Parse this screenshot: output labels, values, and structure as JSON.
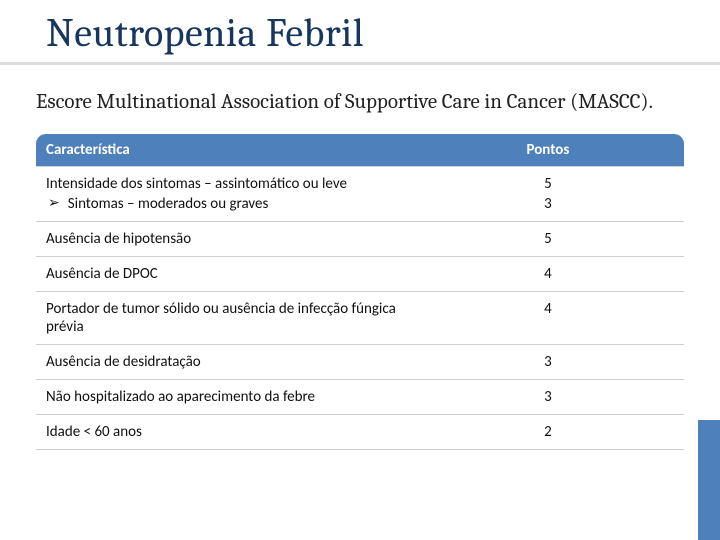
{
  "colors": {
    "accent": "#4e80bb",
    "title_text": "#17365d",
    "underline": "#dddddd",
    "row_border": "#cfcfcf",
    "text": "#111111",
    "header_text": "#ffffff"
  },
  "typography": {
    "title_fontsize_pt": 30,
    "subtitle_fontsize_pt": 16,
    "table_fontsize_pt": 11
  },
  "title": "Neutropenia Febril",
  "subtitle": "Escore Multinational Association of Supportive Care in Cancer (MASCC).",
  "table": {
    "columns": [
      "Característica",
      "Pontos"
    ],
    "rows": [
      {
        "char_main": "Intensidade dos sintomas – assintomático ou leve",
        "points_main": "5",
        "char_sub": "Sintomas – moderados ou graves",
        "points_sub": "3"
      },
      {
        "char_main": "Ausência de hipotensão",
        "points_main": "5"
      },
      {
        "char_main": "Ausência de DPOC",
        "points_main": "4"
      },
      {
        "char_main": "Portador de tumor sólido ou ausência de infecção fúngica prévia",
        "points_main": "4"
      },
      {
        "char_main": "Ausência de desidratação",
        "points_main": "3"
      },
      {
        "char_main": "Não hospitalizado ao aparecimento da febre",
        "points_main": "3"
      },
      {
        "char_main": "Idade < 60 anos",
        "points_main": "2"
      }
    ]
  }
}
